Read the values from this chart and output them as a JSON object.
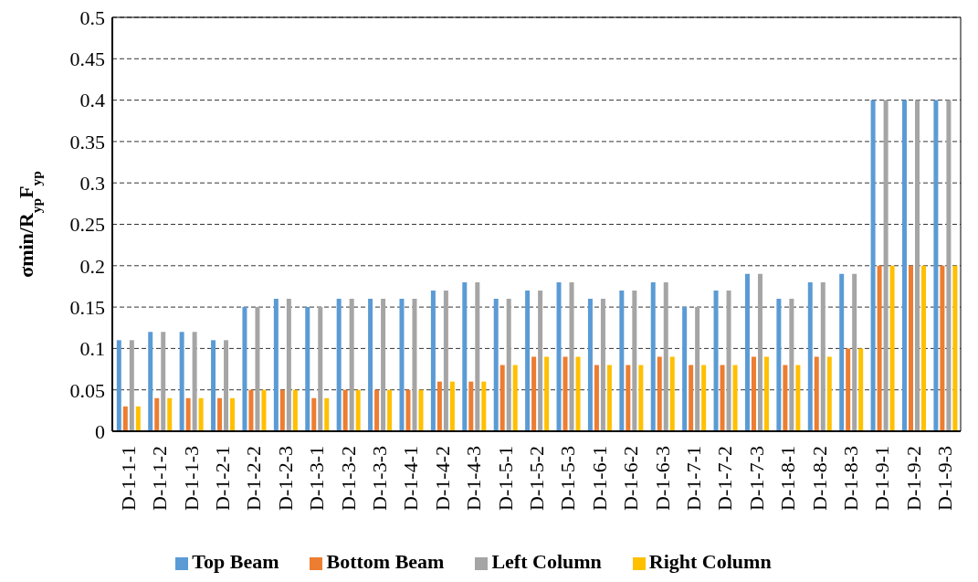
{
  "chart_data": {
    "type": "bar",
    "ylabel": "σmin/R$_{yp}$F$_{yp}$",
    "categories": [
      "D-1-1-1",
      "D-1-1-2",
      "D-1-1-3",
      "D-1-2-1",
      "D-1-2-2",
      "D-1-2-3",
      "D-1-3-1",
      "D-1-3-2",
      "D-1-3-3",
      "D-1-4-1",
      "D-1-4-2",
      "D-1-4-3",
      "D-1-5-1",
      "D-1-5-2",
      "D-1-5-3",
      "D-1-6-1",
      "D-1-6-2",
      "D-1-6-3",
      "D-1-7-1",
      "D-1-7-2",
      "D-1-7-3",
      "D-1-8-1",
      "D-1-8-2",
      "D-1-8-3",
      "D-1-9-1",
      "D-1-9-2",
      "D-1-9-3"
    ],
    "series": [
      {
        "name": "Top Beam",
        "color": "#5b9bd5",
        "values": [
          0.11,
          0.12,
          0.12,
          0.11,
          0.15,
          0.16,
          0.15,
          0.16,
          0.16,
          0.16,
          0.17,
          0.18,
          0.16,
          0.17,
          0.18,
          0.16,
          0.17,
          0.18,
          0.15,
          0.17,
          0.19,
          0.16,
          0.18,
          0.19,
          0.4,
          0.4,
          0.4
        ]
      },
      {
        "name": "Bottom Beam",
        "color": "#ed7d31",
        "values": [
          0.03,
          0.04,
          0.04,
          0.04,
          0.05,
          0.05,
          0.04,
          0.05,
          0.05,
          0.05,
          0.06,
          0.06,
          0.08,
          0.09,
          0.09,
          0.08,
          0.08,
          0.09,
          0.08,
          0.08,
          0.09,
          0.08,
          0.09,
          0.1,
          0.2,
          0.2,
          0.2
        ]
      },
      {
        "name": "Left Column",
        "color": "#a5a5a5",
        "values": [
          0.11,
          0.12,
          0.12,
          0.11,
          0.15,
          0.16,
          0.15,
          0.16,
          0.16,
          0.16,
          0.17,
          0.18,
          0.16,
          0.17,
          0.18,
          0.16,
          0.17,
          0.18,
          0.15,
          0.17,
          0.19,
          0.16,
          0.18,
          0.19,
          0.4,
          0.4,
          0.4
        ]
      },
      {
        "name": "Right Column",
        "color": "#ffc000",
        "values": [
          0.03,
          0.04,
          0.04,
          0.04,
          0.05,
          0.05,
          0.04,
          0.05,
          0.05,
          0.05,
          0.06,
          0.06,
          0.08,
          0.09,
          0.09,
          0.08,
          0.08,
          0.09,
          0.08,
          0.08,
          0.09,
          0.08,
          0.09,
          0.1,
          0.2,
          0.2,
          0.2
        ]
      }
    ],
    "ylim": [
      0,
      0.5
    ],
    "yticks": [
      0,
      0.05,
      0.1,
      0.15,
      0.2,
      0.25,
      0.3,
      0.35,
      0.4,
      0.45,
      0.5
    ],
    "grid": "y",
    "legend": "bottom"
  }
}
